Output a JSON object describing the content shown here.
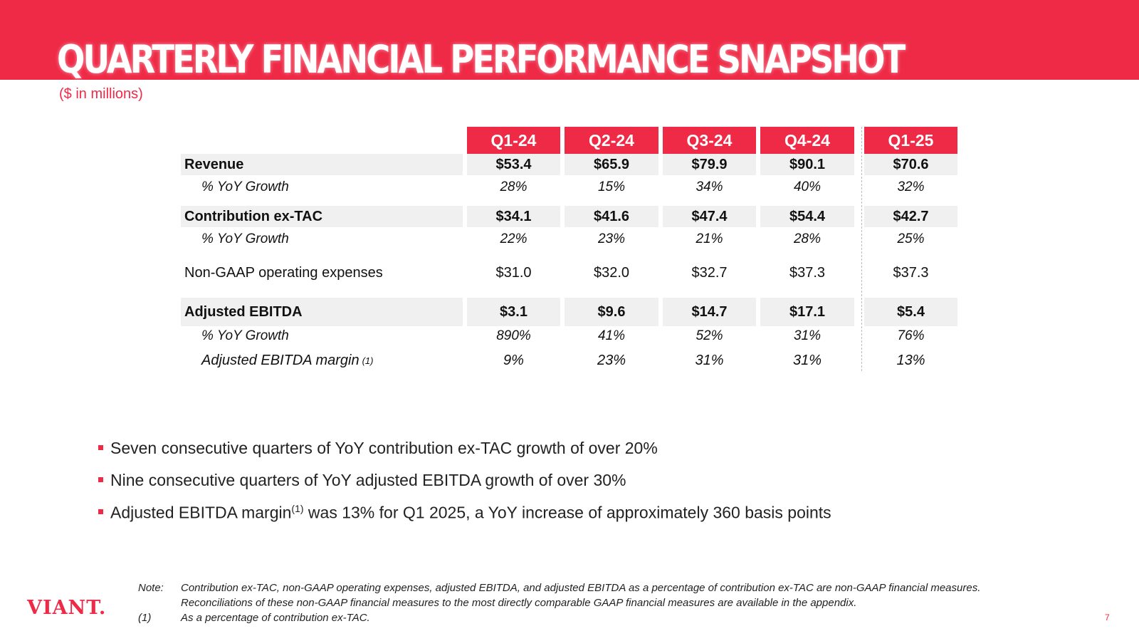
{
  "title": "QUARTERLY FINANCIAL PERFORMANCE SNAPSHOT",
  "subtitle": "($ in millions)",
  "table": {
    "columns": [
      "Q1-24",
      "Q2-24",
      "Q3-24",
      "Q4-24",
      "Q1-25"
    ],
    "rows": [
      {
        "label": "Revenue",
        "values": [
          "$53.4",
          "$65.9",
          "$79.9",
          "$90.1",
          "$70.6"
        ]
      },
      {
        "label": "% YoY Growth",
        "values": [
          "28%",
          "15%",
          "34%",
          "40%",
          "32%"
        ]
      },
      {
        "label": "Contribution ex-TAC",
        "values": [
          "$34.1",
          "$41.6",
          "$47.4",
          "$54.4",
          "$42.7"
        ]
      },
      {
        "label": "% YoY Growth",
        "values": [
          "22%",
          "23%",
          "21%",
          "28%",
          "25%"
        ]
      },
      {
        "label": "Non-GAAP operating expenses",
        "values": [
          "$31.0",
          "$32.0",
          "$32.7",
          "$37.3",
          "$37.3"
        ]
      },
      {
        "label": "Adjusted EBITDA",
        "values": [
          "$3.1",
          "$9.6",
          "$14.7",
          "$17.1",
          "$5.4"
        ]
      },
      {
        "label": "% YoY Growth",
        "values": [
          "890%",
          "41%",
          "52%",
          "31%",
          "76%"
        ]
      },
      {
        "label": "Adjusted EBITDA margin",
        "label_sup": "(1)",
        "values": [
          "9%",
          "23%",
          "31%",
          "31%",
          "13%"
        ]
      }
    ]
  },
  "bullets": [
    {
      "text": "Seven consecutive quarters of YoY contribution ex-TAC growth of over 20%"
    },
    {
      "text": "Nine consecutive quarters of YoY adjusted EBITDA growth of over 30%"
    },
    {
      "pre": "Adjusted EBITDA margin",
      "sup": "(1)",
      "post": " was 13% for Q1 2025, a YoY increase of approximately 360 basis points"
    }
  ],
  "footer": {
    "logo": "VIANT.",
    "note_label": "Note:",
    "note_line1": "Contribution ex-TAC, non-GAAP operating expenses, adjusted EBITDA, and adjusted EBITDA as a percentage of contribution ex-TAC are non-GAAP financial measures.",
    "note_line2": "Reconciliations of these non-GAAP financial measures to the most directly comparable GAAP financial measures are available in the appendix.",
    "footnote_label": "(1)",
    "footnote_text": "As a percentage of contribution ex-TAC.",
    "page_number": "7"
  },
  "colors": {
    "accent": "#ee2a46",
    "row_fill": "#f0f0f0"
  }
}
